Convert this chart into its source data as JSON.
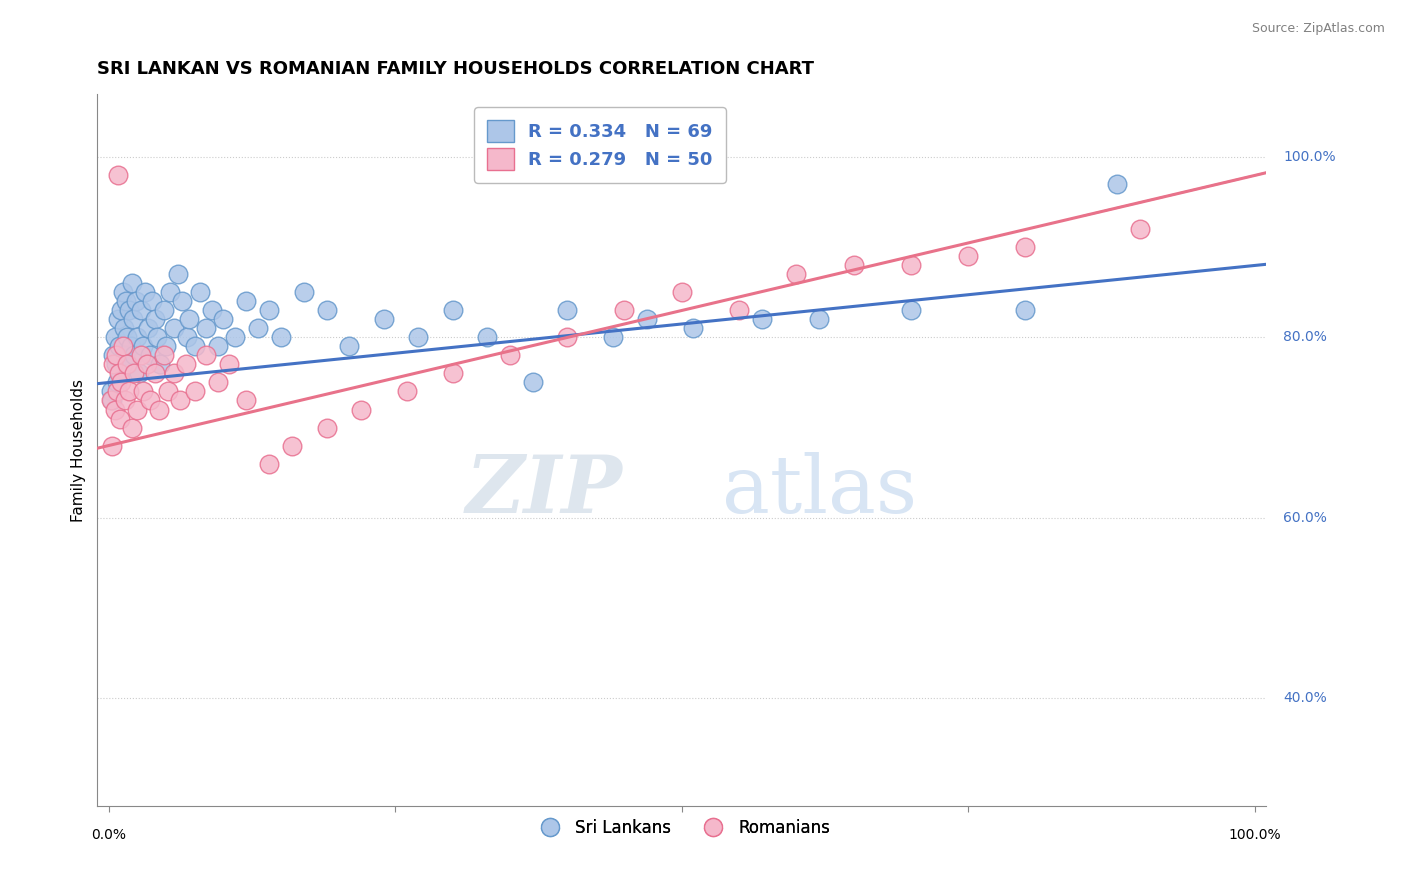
{
  "title": "SRI LANKAN VS ROMANIAN FAMILY HOUSEHOLDS CORRELATION CHART",
  "source": "Source: ZipAtlas.com",
  "ylabel": "Family Households",
  "sri_lankan_R": 0.334,
  "sri_lankan_N": 69,
  "romanian_R": 0.279,
  "romanian_N": 50,
  "blue_color": "#adc6e8",
  "blue_edge": "#6699cc",
  "pink_color": "#f5b8cb",
  "pink_edge": "#e87090",
  "blue_line": "#4472c4",
  "pink_line": "#e8728a",
  "background_color": "#ffffff",
  "grid_color": "#cccccc",
  "title_fontsize": 13,
  "sri_lankans_x": [
    0.2,
    0.3,
    0.4,
    0.5,
    0.6,
    0.7,
    0.8,
    0.9,
    1.0,
    1.1,
    1.2,
    1.3,
    1.4,
    1.5,
    1.6,
    1.7,
    1.8,
    1.9,
    2.0,
    2.1,
    2.2,
    2.4,
    2.5,
    2.6,
    2.8,
    3.0,
    3.2,
    3.4,
    3.6,
    3.8,
    4.0,
    4.2,
    4.5,
    4.8,
    5.0,
    5.3,
    5.7,
    6.0,
    6.4,
    6.8,
    7.0,
    7.5,
    8.0,
    8.5,
    9.0,
    9.5,
    10.0,
    11.0,
    12.0,
    13.0,
    14.0,
    15.0,
    17.0,
    19.0,
    21.0,
    24.0,
    27.0,
    30.0,
    33.0,
    37.0,
    40.0,
    44.0,
    47.0,
    51.0,
    57.0,
    62.0,
    70.0,
    80.0,
    88.0
  ],
  "sri_lankans_y": [
    74,
    73,
    78,
    80,
    77,
    75,
    82,
    79,
    76,
    83,
    85,
    81,
    78,
    84,
    80,
    77,
    83,
    79,
    86,
    82,
    78,
    84,
    80,
    76,
    83,
    79,
    85,
    81,
    78,
    84,
    82,
    80,
    77,
    83,
    79,
    85,
    81,
    87,
    84,
    80,
    82,
    79,
    85,
    81,
    83,
    79,
    82,
    80,
    84,
    81,
    83,
    80,
    85,
    83,
    79,
    82,
    80,
    83,
    80,
    75,
    83,
    80,
    82,
    81,
    82,
    82,
    83,
    83,
    97
  ],
  "romanians_x": [
    0.2,
    0.3,
    0.4,
    0.5,
    0.6,
    0.7,
    0.8,
    0.9,
    1.0,
    1.1,
    1.2,
    1.4,
    1.6,
    1.8,
    2.0,
    2.2,
    2.5,
    2.8,
    3.0,
    3.3,
    3.6,
    4.0,
    4.4,
    4.8,
    5.2,
    5.7,
    6.2,
    6.7,
    7.5,
    8.5,
    9.5,
    10.5,
    12.0,
    14.0,
    16.0,
    19.0,
    22.0,
    26.0,
    30.0,
    35.0,
    40.0,
    45.0,
    50.0,
    55.0,
    60.0,
    65.0,
    70.0,
    75.0,
    80.0,
    90.0
  ],
  "romanians_y": [
    73,
    68,
    77,
    72,
    78,
    74,
    98,
    76,
    71,
    75,
    79,
    73,
    77,
    74,
    70,
    76,
    72,
    78,
    74,
    77,
    73,
    76,
    72,
    78,
    74,
    76,
    73,
    77,
    74,
    78,
    75,
    77,
    73,
    66,
    68,
    70,
    72,
    74,
    76,
    78,
    80,
    83,
    85,
    83,
    87,
    88,
    88,
    89,
    90,
    92
  ],
  "ytick_values": [
    40,
    60,
    80,
    100
  ],
  "ytick_labels": [
    "40.0%",
    "60.0%",
    "80.0%",
    "100.0%"
  ]
}
